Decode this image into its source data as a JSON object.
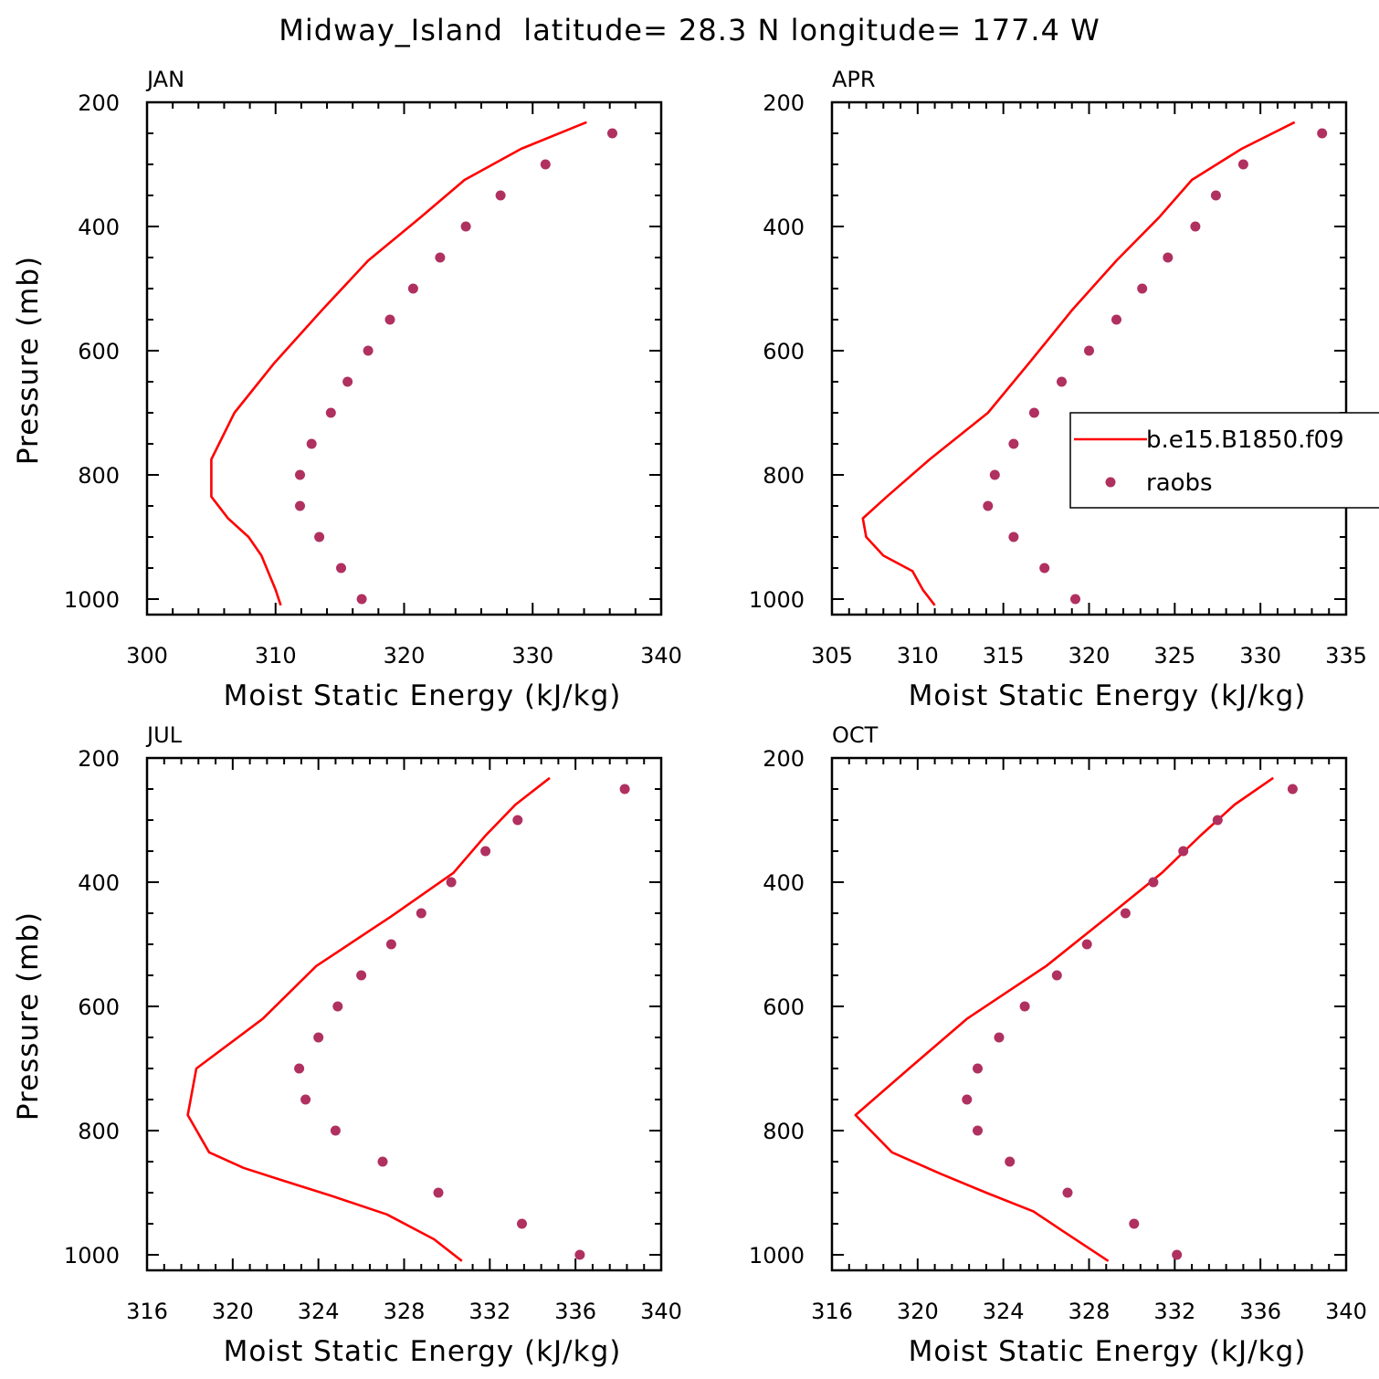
{
  "title": "Midway_Island  latitude= 28.3 N longitude= 177.4 W",
  "colors": {
    "model": "#ff0000",
    "obs": "#b03060",
    "axis": "#000000"
  },
  "legend": {
    "entries": [
      {
        "label": "b.e15.B1850.f09",
        "type": "line"
      },
      {
        "label": "raobs",
        "type": "marker"
      }
    ],
    "placement": "inside APR panel, right edge"
  },
  "chart_data": [
    {
      "type": "line",
      "panel_label": "JAN",
      "xlabel": "Moist Static Energy (kJ/kg)",
      "ylabel": "Pressure (mb)",
      "xlim": [
        300,
        340
      ],
      "ylim": [
        1025,
        200
      ],
      "xticks": [
        300,
        310,
        320,
        330,
        340
      ],
      "xtick_labels": [
        "300",
        "310",
        "320",
        "330",
        "340"
      ],
      "yticks": [
        200,
        400,
        600,
        800,
        1000
      ],
      "ytick_labels": [
        "200",
        "400",
        "600",
        "800",
        "1000"
      ],
      "series": [
        {
          "name": "b.e15.B1850.f09",
          "style": "line",
          "x": [
            334.2,
            329.1,
            324.7,
            321.3,
            317.2,
            313.6,
            309.9,
            306.8,
            305.0,
            305.0,
            306.3,
            307.9,
            308.9,
            309.4,
            310.0,
            310.4
          ],
          "y": [
            232,
            275,
            325,
            385,
            455,
            535,
            620,
            700,
            775,
            835,
            870,
            900,
            930,
            955,
            985,
            1010
          ]
        },
        {
          "name": "raobs",
          "style": "marker",
          "x": [
            336.2,
            331.0,
            327.5,
            324.8,
            322.8,
            320.7,
            318.9,
            317.2,
            315.6,
            314.3,
            312.8,
            311.9,
            311.9,
            313.4,
            315.1,
            316.7
          ],
          "y": [
            250,
            300,
            350,
            400,
            450,
            500,
            550,
            600,
            650,
            700,
            750,
            800,
            850,
            900,
            950,
            1000
          ]
        }
      ]
    },
    {
      "type": "line",
      "panel_label": "APR",
      "xlabel": "Moist Static Energy (kJ/kg)",
      "ylabel": "",
      "xlim": [
        305,
        335
      ],
      "ylim": [
        1025,
        200
      ],
      "xticks": [
        305,
        310,
        315,
        320,
        325,
        330,
        335
      ],
      "xtick_labels": [
        "305",
        "310",
        "315",
        "320",
        "325",
        "330",
        "335"
      ],
      "yticks": [
        200,
        400,
        600,
        800,
        1000
      ],
      "ytick_labels": [
        "200",
        "400",
        "600",
        "800",
        "1000"
      ],
      "series": [
        {
          "name": "b.e15.B1850.f09",
          "style": "line",
          "x": [
            332.0,
            328.9,
            326.0,
            324.1,
            321.6,
            319.0,
            316.5,
            314.1,
            310.7,
            308.2,
            306.8,
            307.0,
            308.0,
            309.7,
            310.3,
            311.0
          ],
          "y": [
            232,
            275,
            325,
            385,
            455,
            535,
            620,
            700,
            775,
            835,
            870,
            900,
            930,
            955,
            985,
            1010
          ]
        },
        {
          "name": "raobs",
          "style": "marker",
          "x": [
            333.6,
            329.0,
            327.4,
            326.2,
            324.6,
            323.1,
            321.6,
            320.0,
            318.4,
            316.8,
            315.6,
            314.5,
            314.1,
            315.6,
            317.4,
            319.2
          ],
          "y": [
            250,
            300,
            350,
            400,
            450,
            500,
            550,
            600,
            650,
            700,
            750,
            800,
            850,
            900,
            950,
            1000
          ]
        }
      ]
    },
    {
      "type": "line",
      "panel_label": "JUL",
      "xlabel": "Moist Static Energy (kJ/kg)",
      "ylabel": "Pressure (mb)",
      "xlim": [
        316,
        340
      ],
      "ylim": [
        1025,
        200
      ],
      "xticks": [
        316,
        320,
        324,
        328,
        332,
        336,
        340
      ],
      "xtick_labels": [
        "316",
        "320",
        "324",
        "328",
        "332",
        "336",
        "340"
      ],
      "yticks": [
        200,
        400,
        600,
        800,
        1000
      ],
      "ytick_labels": [
        "200",
        "400",
        "600",
        "800",
        "1000"
      ],
      "series": [
        {
          "name": "b.e15.B1850.f09",
          "style": "line",
          "x": [
            334.8,
            333.2,
            331.8,
            330.3,
            327.4,
            323.9,
            321.4,
            318.3,
            317.9,
            318.9,
            320.5,
            322.3,
            324.6,
            327.2,
            329.4,
            330.7
          ],
          "y": [
            232,
            275,
            325,
            385,
            455,
            535,
            620,
            700,
            775,
            835,
            860,
            880,
            905,
            935,
            975,
            1010
          ]
        },
        {
          "name": "raobs",
          "style": "marker",
          "x": [
            338.3,
            333.3,
            331.8,
            330.2,
            328.8,
            327.4,
            326.0,
            324.9,
            324.0,
            323.1,
            323.4,
            324.8,
            327.0,
            329.6,
            333.5,
            336.2
          ],
          "y": [
            250,
            300,
            350,
            400,
            450,
            500,
            550,
            600,
            650,
            700,
            750,
            800,
            850,
            900,
            950,
            1000
          ]
        }
      ]
    },
    {
      "type": "line",
      "panel_label": "OCT",
      "xlabel": "Moist Static Energy (kJ/kg)",
      "ylabel": "",
      "xlim": [
        316,
        340
      ],
      "ylim": [
        1025,
        200
      ],
      "xticks": [
        316,
        320,
        324,
        328,
        332,
        336,
        340
      ],
      "xtick_labels": [
        "316",
        "320",
        "324",
        "328",
        "332",
        "336",
        "340"
      ],
      "yticks": [
        200,
        400,
        600,
        800,
        1000
      ],
      "ytick_labels": [
        "200",
        "400",
        "600",
        "800",
        "1000"
      ],
      "series": [
        {
          "name": "b.e15.B1850.f09",
          "style": "line",
          "x": [
            336.6,
            334.8,
            333.2,
            331.4,
            328.9,
            326.0,
            322.3,
            319.6,
            317.1,
            318.8,
            321.1,
            323.2,
            325.4,
            326.7,
            327.8,
            328.9
          ],
          "y": [
            232,
            275,
            325,
            385,
            455,
            535,
            620,
            700,
            775,
            835,
            870,
            900,
            930,
            960,
            985,
            1010
          ]
        },
        {
          "name": "raobs",
          "style": "marker",
          "x": [
            337.5,
            334.0,
            332.4,
            331.0,
            329.7,
            327.9,
            326.5,
            325.0,
            323.8,
            322.8,
            322.3,
            322.8,
            324.3,
            327.0,
            330.1,
            332.1
          ],
          "y": [
            250,
            300,
            350,
            400,
            450,
            500,
            550,
            600,
            650,
            700,
            750,
            800,
            850,
            900,
            950,
            1000
          ]
        }
      ]
    }
  ]
}
